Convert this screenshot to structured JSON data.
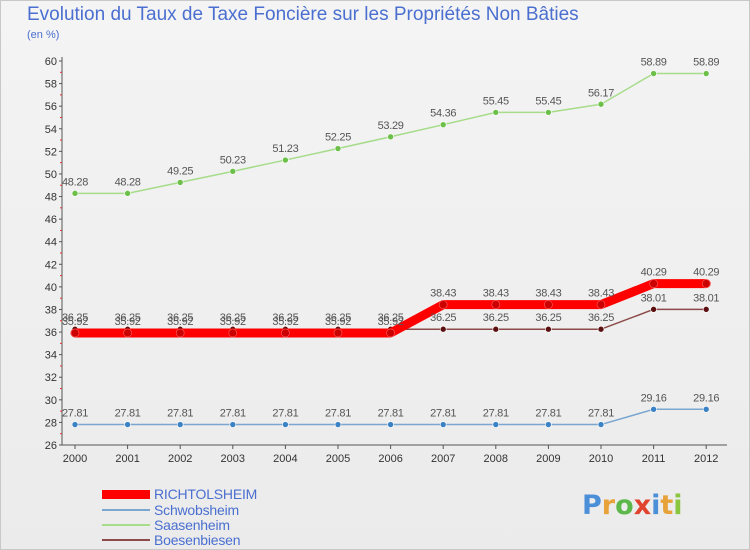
{
  "title": "Evolution du Taux de Taxe Foncière sur les Propriétés Non Bâties",
  "unit_label": "(en %)",
  "logo": "Proxiti",
  "chart_data": {
    "type": "line",
    "x": [
      "2000",
      "2001",
      "2002",
      "2003",
      "2004",
      "2005",
      "2006",
      "2007",
      "2008",
      "2009",
      "2010",
      "2011",
      "2012"
    ],
    "ylim": [
      26,
      60
    ],
    "yticks": [
      26,
      28,
      30,
      32,
      34,
      36,
      38,
      40,
      42,
      44,
      46,
      48,
      50,
      52,
      54,
      56,
      58,
      60
    ],
    "grid": false,
    "legend_position": "bottom-left",
    "series": [
      {
        "name": "RICHTOLSHEIM",
        "color": "#ff0000",
        "marker_color": "#cc0000",
        "line_width": 9,
        "values": [
          35.92,
          35.92,
          35.92,
          35.92,
          35.92,
          35.92,
          35.92,
          38.43,
          38.43,
          38.43,
          38.43,
          40.29,
          40.29
        ],
        "labels": [
          "35.92",
          "35.92",
          "35.92",
          "35.92",
          "35.92",
          "35.92",
          "35.92",
          "38.43",
          "38.43",
          "38.43",
          "38.43",
          "40.29",
          "40.29"
        ]
      },
      {
        "name": "Schwobsheim",
        "color": "#7aa6cf",
        "marker_color": "#3b82c4",
        "line_width": 1.5,
        "values": [
          27.81,
          27.81,
          27.81,
          27.81,
          27.81,
          27.81,
          27.81,
          27.81,
          27.81,
          27.81,
          27.81,
          29.16,
          29.16
        ],
        "labels": [
          "27.81",
          "27.81",
          "27.81",
          "27.81",
          "27.81",
          "27.81",
          "27.81",
          "27.81",
          "27.81",
          "27.81",
          "27.81",
          "29.16",
          "29.16"
        ]
      },
      {
        "name": "Saasenheim",
        "color": "#a6dc8a",
        "marker_color": "#6cc04a",
        "line_width": 1.5,
        "values": [
          48.28,
          48.28,
          49.25,
          50.23,
          51.23,
          52.25,
          53.29,
          54.36,
          55.45,
          55.45,
          56.17,
          58.89,
          58.89
        ],
        "labels": [
          "48.28",
          "48.28",
          "49.25",
          "50.23",
          "51.23",
          "52.25",
          "53.29",
          "54.36",
          "55.45",
          "55.45",
          "56.17",
          "58.89",
          "58.89"
        ]
      },
      {
        "name": "Boesenbiesen",
        "color": "#8c4a4a",
        "marker_color": "#5a1010",
        "line_width": 1.5,
        "values": [
          36.25,
          36.25,
          36.25,
          36.25,
          36.25,
          36.25,
          36.25,
          36.25,
          36.25,
          36.25,
          36.25,
          38.01,
          38.01
        ],
        "labels": [
          "36.25",
          "36.25",
          "36.25",
          "36.25",
          "36.25",
          "36.25",
          "36.25",
          "36.25",
          "36.25",
          "36.25",
          "36.25",
          "38.01",
          "38.01"
        ]
      }
    ]
  }
}
